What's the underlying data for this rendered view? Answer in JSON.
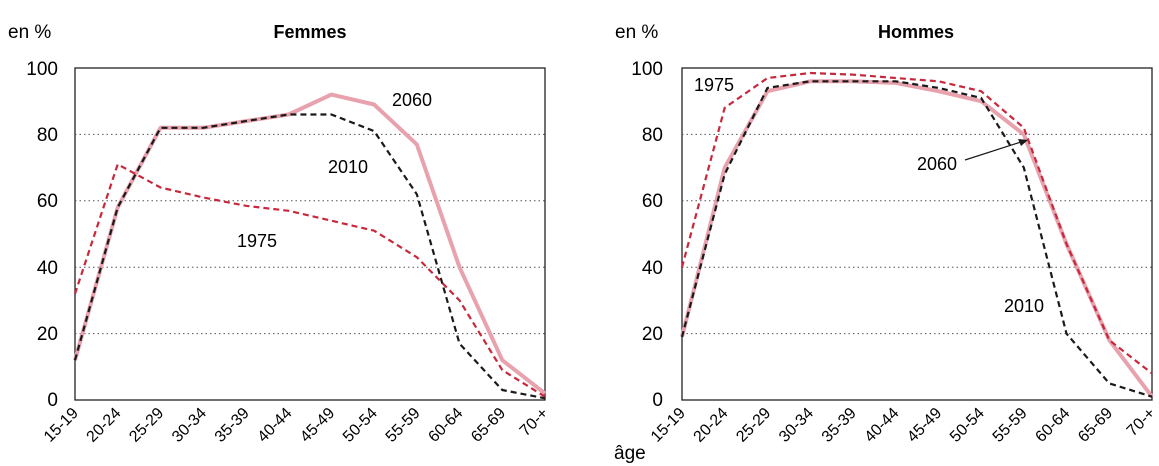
{
  "chart_data": [
    {
      "type": "line",
      "title": "Femmes",
      "ylabel": "en %",
      "xlabel": "",
      "ylim": [
        0,
        100
      ],
      "yticks": [
        0,
        20,
        40,
        60,
        80,
        100
      ],
      "grid": "horizontal-dotted",
      "categories": [
        "15-19",
        "20-24",
        "25-29",
        "30-34",
        "35-39",
        "40-44",
        "45-49",
        "50-54",
        "55-59",
        "60-64",
        "65-69",
        "70-+"
      ],
      "series": [
        {
          "name": "1975",
          "color": "#c8283c",
          "dash": "dashed",
          "values": [
            32,
            71,
            64,
            61,
            58.5,
            57,
            54,
            51,
            43,
            30,
            9,
            1
          ]
        },
        {
          "name": "2010",
          "color": "#1a1a1a",
          "dash": "dashed",
          "values": [
            12,
            58,
            82,
            82,
            84,
            86,
            86,
            81,
            62,
            17,
            3,
            0.5
          ]
        },
        {
          "name": "2060",
          "color": "#e8a2ad",
          "dash": "solid",
          "values": [
            12,
            58,
            82,
            82,
            84,
            86,
            92,
            89,
            77,
            40,
            12,
            2
          ]
        }
      ]
    },
    {
      "type": "line",
      "title": "Hommes",
      "ylabel": "en %",
      "xlabel": "âge",
      "ylim": [
        0,
        100
      ],
      "yticks": [
        0,
        20,
        40,
        60,
        80,
        100
      ],
      "grid": "horizontal-dotted",
      "categories": [
        "15-19",
        "20-24",
        "25-29",
        "30-34",
        "35-39",
        "40-44",
        "45-49",
        "50-54",
        "55-59",
        "60-64",
        "65-69",
        "70-+"
      ],
      "series": [
        {
          "name": "1975",
          "color": "#c8283c",
          "dash": "dashed",
          "values": [
            40,
            88,
            97,
            98.5,
            98,
            97,
            96,
            93,
            82,
            47,
            18,
            8
          ]
        },
        {
          "name": "2010",
          "color": "#1a1a1a",
          "dash": "dashed",
          "values": [
            19,
            68,
            94,
            96,
            96,
            96,
            94,
            91,
            70,
            20,
            5,
            1
          ]
        },
        {
          "name": "2060",
          "color": "#e8a2ad",
          "dash": "solid",
          "values": [
            19,
            70,
            93,
            96,
            96,
            95.5,
            93,
            90,
            80,
            47,
            18,
            1
          ]
        }
      ]
    }
  ]
}
